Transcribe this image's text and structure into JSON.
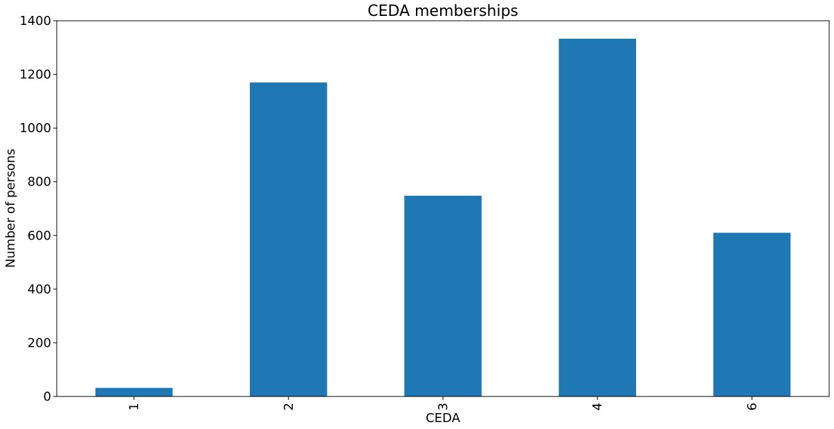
{
  "chart_data": {
    "type": "bar",
    "title": "CEDA memberships",
    "xlabel": "CEDA",
    "ylabel": "Number of persons",
    "categories": [
      "1",
      "2",
      "3",
      "4",
      "6"
    ],
    "values": [
      32,
      1170,
      748,
      1333,
      610
    ],
    "ylim": [
      0,
      1400
    ],
    "yticks": [
      0,
      200,
      400,
      600,
      800,
      1000,
      1200,
      1400
    ],
    "grid": false,
    "legend": "none",
    "bar_color": "#1f77b4"
  }
}
